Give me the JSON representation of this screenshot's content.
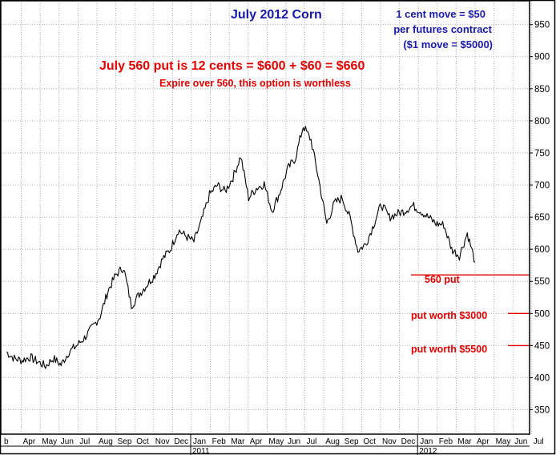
{
  "chart_data": {
    "type": "line",
    "title": "July 2012 Corn",
    "ylim": [
      312,
      987
    ],
    "y_ticks": [
      350,
      400,
      450,
      500,
      550,
      600,
      650,
      700,
      750,
      800,
      850,
      900,
      950
    ],
    "month_labels": [
      "b",
      "Apr",
      "May",
      "Jun",
      "Jul",
      "Aug",
      "Sep",
      "Oct",
      "Nov",
      "Dec",
      "Jan",
      "Feb",
      "Mar",
      "Apr",
      "May",
      "Jun",
      "Jul",
      "Aug",
      "Sep",
      "Oct",
      "Nov",
      "Dec",
      "Jan",
      "Feb",
      "Mar",
      "Apr",
      "May",
      "Jun",
      "Jul"
    ],
    "year_labels": [
      "2011",
      "2012"
    ],
    "series": [
      {
        "color": "#000000",
        "points": [
          [
            0,
            440
          ],
          [
            1,
            430
          ],
          [
            2,
            427
          ],
          [
            3,
            432
          ],
          [
            4,
            425
          ],
          [
            5,
            418
          ],
          [
            6,
            430
          ],
          [
            7,
            420
          ],
          [
            8,
            440
          ],
          [
            9,
            450
          ],
          [
            10,
            462
          ],
          [
            11,
            478
          ],
          [
            12,
            496
          ],
          [
            13,
            535
          ],
          [
            14,
            560
          ],
          [
            15,
            572
          ],
          [
            16,
            512
          ],
          [
            17,
            530
          ],
          [
            18,
            545
          ],
          [
            19,
            560
          ],
          [
            20,
            585
          ],
          [
            21,
            600
          ],
          [
            22,
            630
          ],
          [
            23,
            620
          ],
          [
            24,
            612
          ],
          [
            25,
            645
          ],
          [
            26,
            685
          ],
          [
            27,
            700
          ],
          [
            28,
            690
          ],
          [
            29,
            712
          ],
          [
            30,
            745
          ],
          [
            31,
            680
          ],
          [
            32,
            695
          ],
          [
            33,
            702
          ],
          [
            34,
            660
          ],
          [
            35,
            688
          ],
          [
            36,
            725
          ],
          [
            37,
            742
          ],
          [
            38,
            792
          ],
          [
            39,
            770
          ],
          [
            40,
            708
          ],
          [
            41,
            640
          ],
          [
            42,
            672
          ],
          [
            43,
            680
          ],
          [
            44,
            648
          ],
          [
            45,
            598
          ],
          [
            46,
            608
          ],
          [
            47,
            638
          ],
          [
            48,
            670
          ],
          [
            49,
            650
          ],
          [
            50,
            655
          ],
          [
            51,
            660
          ],
          [
            52,
            668
          ],
          [
            53,
            660
          ],
          [
            54,
            650
          ],
          [
            55,
            640
          ],
          [
            56,
            638
          ],
          [
            57,
            600
          ],
          [
            58,
            590
          ],
          [
            59,
            625
          ],
          [
            60,
            580
          ]
        ]
      }
    ],
    "annotations": {
      "move_note": [
        "1 cent move = $50",
        "per futures contract",
        "($1 move = $5000)"
      ],
      "put_cost": "July 560 put is 12 cents = $600 + $60 = $660",
      "expire_note": "Expire over 560, this option is worthless"
    },
    "levels": [
      {
        "label": "560 put",
        "value": 560
      },
      {
        "label": "put worth $3000",
        "value": 500
      },
      {
        "label": "put worth $5500",
        "value": 450
      }
    ],
    "grid": true,
    "accent_colors": {
      "title": "#1a1aa8",
      "notes": "#e00000",
      "price": "#000000"
    }
  }
}
